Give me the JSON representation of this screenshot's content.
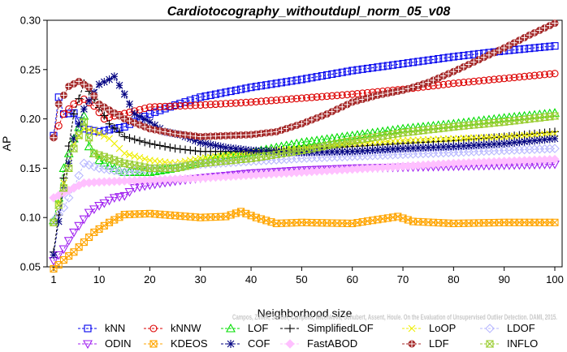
{
  "chart_data": {
    "type": "line",
    "title": "Cardiotocography_withoutdupl_norm_05_v08",
    "xlabel": "Neighborhood size",
    "ylabel": "AP",
    "xlim": [
      0,
      100
    ],
    "ylim": [
      0.05,
      0.3
    ],
    "x_ticks": [
      1,
      10,
      20,
      30,
      40,
      50,
      60,
      70,
      80,
      90,
      100
    ],
    "y_ticks": [
      "0.05",
      "0.10",
      "0.15",
      "0.20",
      "0.25",
      "0.30"
    ],
    "grid": false,
    "legend_position": "bottom",
    "credit": "Campos, Zimek, Sander, Campello, Micenkova, Schubert, Assent, Houle. On the Evaluation of Unsupervised Outlier Detection. DAMI, 2015.",
    "series": [
      {
        "name": "kNN",
        "color": "#0000ee",
        "marker": "square",
        "points": [
          [
            1,
            0.183
          ],
          [
            2,
            0.222
          ],
          [
            3,
            0.205
          ],
          [
            5,
            0.206
          ],
          [
            7,
            0.19
          ],
          [
            10,
            0.187
          ],
          [
            15,
            0.192
          ],
          [
            20,
            0.205
          ],
          [
            25,
            0.214
          ],
          [
            30,
            0.222
          ],
          [
            35,
            0.227
          ],
          [
            40,
            0.232
          ],
          [
            50,
            0.24
          ],
          [
            60,
            0.249
          ],
          [
            70,
            0.256
          ],
          [
            80,
            0.263
          ],
          [
            90,
            0.269
          ],
          [
            100,
            0.274
          ]
        ]
      },
      {
        "name": "kNNW",
        "color": "#dd0000",
        "marker": "circle",
        "points": [
          [
            1,
            0.181
          ],
          [
            3,
            0.205
          ],
          [
            5,
            0.215
          ],
          [
            7,
            0.22
          ],
          [
            9,
            0.213
          ],
          [
            11,
            0.2
          ],
          [
            13,
            0.203
          ],
          [
            17,
            0.208
          ],
          [
            20,
            0.212
          ],
          [
            25,
            0.213
          ],
          [
            30,
            0.214
          ],
          [
            40,
            0.217
          ],
          [
            50,
            0.221
          ],
          [
            60,
            0.225
          ],
          [
            70,
            0.23
          ],
          [
            80,
            0.236
          ],
          [
            90,
            0.241
          ],
          [
            100,
            0.246
          ]
        ]
      },
      {
        "name": "LOF",
        "color": "#00dd00",
        "marker": "triangle-up",
        "points": [
          [
            1,
            0.097
          ],
          [
            2,
            0.12
          ],
          [
            3,
            0.15
          ],
          [
            5,
            0.18
          ],
          [
            7,
            0.203
          ],
          [
            8,
            0.172
          ],
          [
            10,
            0.158
          ],
          [
            13,
            0.15
          ],
          [
            15,
            0.146
          ],
          [
            20,
            0.146
          ],
          [
            25,
            0.15
          ],
          [
            30,
            0.157
          ],
          [
            35,
            0.163
          ],
          [
            40,
            0.166
          ],
          [
            50,
            0.176
          ],
          [
            60,
            0.183
          ],
          [
            70,
            0.19
          ],
          [
            80,
            0.195
          ],
          [
            90,
            0.201
          ],
          [
            100,
            0.206
          ]
        ]
      },
      {
        "name": "SimplifiedLOF",
        "color": "#000000",
        "marker": "plus",
        "points": [
          [
            1,
            0.065
          ],
          [
            3,
            0.14
          ],
          [
            5,
            0.205
          ],
          [
            7,
            0.236
          ],
          [
            9,
            0.22
          ],
          [
            12,
            0.195
          ],
          [
            15,
            0.182
          ],
          [
            20,
            0.175
          ],
          [
            25,
            0.17
          ],
          [
            30,
            0.167
          ],
          [
            40,
            0.167
          ],
          [
            50,
            0.169
          ],
          [
            60,
            0.172
          ],
          [
            70,
            0.175
          ],
          [
            80,
            0.178
          ],
          [
            90,
            0.182
          ],
          [
            100,
            0.187
          ]
        ]
      },
      {
        "name": "LoOP",
        "color": "#eeee00",
        "marker": "x",
        "points": [
          [
            1,
            0.095
          ],
          [
            3,
            0.135
          ],
          [
            5,
            0.175
          ],
          [
            7,
            0.19
          ],
          [
            9,
            0.188
          ],
          [
            12,
            0.18
          ],
          [
            15,
            0.165
          ],
          [
            20,
            0.158
          ],
          [
            25,
            0.155
          ],
          [
            30,
            0.16
          ],
          [
            40,
            0.166
          ],
          [
            50,
            0.17
          ],
          [
            60,
            0.175
          ],
          [
            70,
            0.178
          ],
          [
            80,
            0.18
          ],
          [
            90,
            0.182
          ],
          [
            100,
            0.185
          ]
        ]
      },
      {
        "name": "LDOF",
        "color": "#b9b9ff",
        "marker": "diamond",
        "points": [
          [
            1,
            0.097
          ],
          [
            3,
            0.11
          ],
          [
            5,
            0.13
          ],
          [
            7,
            0.155
          ],
          [
            10,
            0.15
          ],
          [
            15,
            0.146
          ],
          [
            20,
            0.149
          ],
          [
            25,
            0.151
          ],
          [
            30,
            0.154
          ],
          [
            40,
            0.157
          ],
          [
            50,
            0.16
          ],
          [
            60,
            0.162
          ],
          [
            70,
            0.164
          ],
          [
            80,
            0.166
          ],
          [
            90,
            0.168
          ],
          [
            100,
            0.17
          ]
        ]
      },
      {
        "name": "ODIN",
        "color": "#a020f0",
        "marker": "triangle-down",
        "points": [
          [
            1,
            0.056
          ],
          [
            3,
            0.068
          ],
          [
            5,
            0.085
          ],
          [
            8,
            0.105
          ],
          [
            10,
            0.112
          ],
          [
            13,
            0.12
          ],
          [
            15,
            0.122
          ],
          [
            17,
            0.13
          ],
          [
            20,
            0.133
          ],
          [
            25,
            0.137
          ],
          [
            30,
            0.14
          ],
          [
            40,
            0.145
          ],
          [
            50,
            0.148
          ],
          [
            60,
            0.15
          ],
          [
            70,
            0.151
          ],
          [
            80,
            0.152
          ],
          [
            90,
            0.153
          ],
          [
            100,
            0.154
          ]
        ]
      },
      {
        "name": "KDEOS",
        "color": "#ffa500",
        "marker": "boxed-x",
        "points": [
          [
            1,
            0.048
          ],
          [
            2,
            0.052
          ],
          [
            3,
            0.057
          ],
          [
            5,
            0.065
          ],
          [
            7,
            0.075
          ],
          [
            9,
            0.085
          ],
          [
            12,
            0.095
          ],
          [
            15,
            0.103
          ],
          [
            20,
            0.104
          ],
          [
            25,
            0.102
          ],
          [
            30,
            0.1
          ],
          [
            35,
            0.101
          ],
          [
            38,
            0.106
          ],
          [
            41,
            0.1
          ],
          [
            45,
            0.094
          ],
          [
            50,
            0.095
          ],
          [
            60,
            0.094
          ],
          [
            69,
            0.101
          ],
          [
            72,
            0.096
          ],
          [
            80,
            0.094
          ],
          [
            90,
            0.095
          ],
          [
            100,
            0.095
          ]
        ]
      },
      {
        "name": "COF",
        "color": "#000080",
        "marker": "asterisk",
        "points": [
          [
            1,
            0.062
          ],
          [
            3,
            0.13
          ],
          [
            5,
            0.18
          ],
          [
            7,
            0.21
          ],
          [
            10,
            0.235
          ],
          [
            12,
            0.24
          ],
          [
            13,
            0.243
          ],
          [
            15,
            0.225
          ],
          [
            17,
            0.205
          ],
          [
            20,
            0.197
          ],
          [
            23,
            0.187
          ],
          [
            26,
            0.184
          ],
          [
            28,
            0.18
          ],
          [
            30,
            0.176
          ],
          [
            35,
            0.171
          ],
          [
            40,
            0.168
          ],
          [
            50,
            0.166
          ],
          [
            60,
            0.167
          ],
          [
            70,
            0.17
          ],
          [
            80,
            0.172
          ],
          [
            90,
            0.175
          ],
          [
            100,
            0.18
          ]
        ]
      },
      {
        "name": "FastABOD",
        "color": "#ffc0ff",
        "marker": "diamond-filled",
        "points": [
          [
            1,
            0.12
          ],
          [
            3,
            0.125
          ],
          [
            5,
            0.13
          ],
          [
            7,
            0.135
          ],
          [
            10,
            0.136
          ],
          [
            15,
            0.137
          ],
          [
            20,
            0.138
          ],
          [
            30,
            0.14
          ],
          [
            40,
            0.143
          ],
          [
            50,
            0.146
          ],
          [
            60,
            0.149
          ],
          [
            70,
            0.152
          ],
          [
            80,
            0.155
          ],
          [
            90,
            0.157
          ],
          [
            100,
            0.159
          ]
        ]
      },
      {
        "name": "LDF",
        "color": "#a52a2a",
        "marker": "circle-plus",
        "points": [
          [
            1,
            0.181
          ],
          [
            2,
            0.215
          ],
          [
            4,
            0.233
          ],
          [
            6,
            0.238
          ],
          [
            8,
            0.232
          ],
          [
            10,
            0.215
          ],
          [
            15,
            0.2
          ],
          [
            20,
            0.19
          ],
          [
            25,
            0.185
          ],
          [
            30,
            0.182
          ],
          [
            35,
            0.183
          ],
          [
            40,
            0.184
          ],
          [
            45,
            0.187
          ],
          [
            50,
            0.195
          ],
          [
            55,
            0.205
          ],
          [
            60,
            0.217
          ],
          [
            65,
            0.224
          ],
          [
            70,
            0.229
          ],
          [
            75,
            0.237
          ],
          [
            80,
            0.248
          ],
          [
            85,
            0.26
          ],
          [
            90,
            0.272
          ],
          [
            95,
            0.285
          ],
          [
            100,
            0.297
          ]
        ]
      },
      {
        "name": "INFLO",
        "color": "#9acd32",
        "marker": "boxed-hourglass",
        "points": [
          [
            1,
            0.095
          ],
          [
            3,
            0.13
          ],
          [
            5,
            0.17
          ],
          [
            7,
            0.197
          ],
          [
            9,
            0.165
          ],
          [
            12,
            0.16
          ],
          [
            15,
            0.155
          ],
          [
            20,
            0.15
          ],
          [
            25,
            0.15
          ],
          [
            30,
            0.155
          ],
          [
            40,
            0.16
          ],
          [
            50,
            0.168
          ],
          [
            60,
            0.178
          ],
          [
            70,
            0.186
          ],
          [
            80,
            0.192
          ],
          [
            90,
            0.197
          ],
          [
            100,
            0.203
          ]
        ]
      }
    ]
  }
}
